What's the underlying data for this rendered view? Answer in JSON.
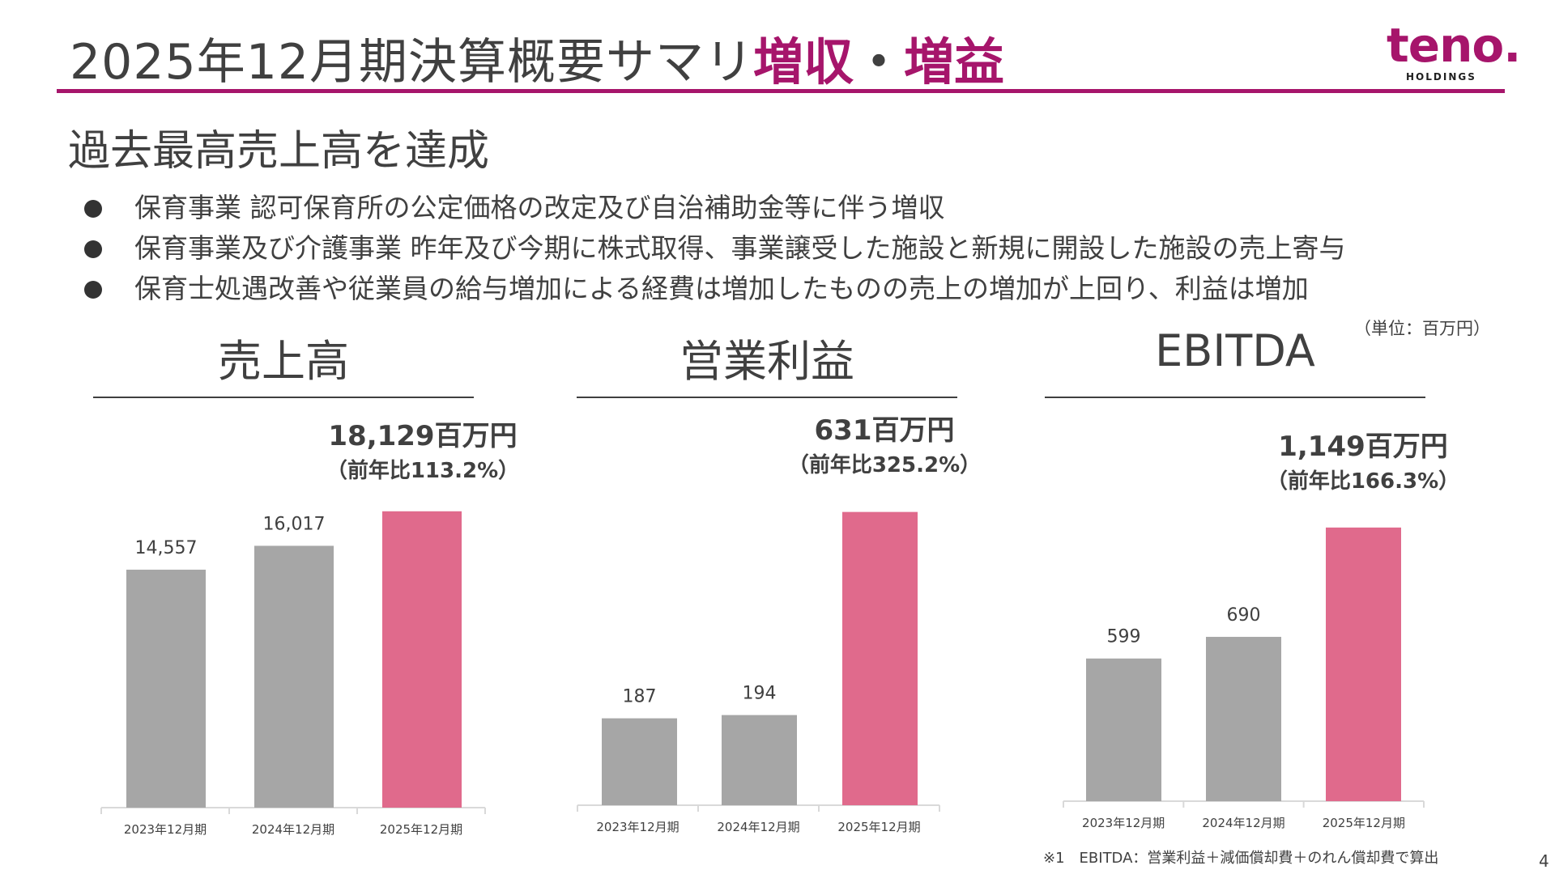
{
  "header": {
    "title": "2025年12月期決算概要サマリ",
    "highlight_part1": "増収",
    "highlight_sep": "・",
    "highlight_part2": "増益",
    "logo_text": "teno.",
    "logo_sub": "HOLDINGS"
  },
  "headline": "過去最高売上高を達成",
  "bullets": [
    "保育事業 認可保育所の公定価格の改定及び自治補助金等に伴う増収",
    "保育事業及び介護事業 昨年及び今期に株式取得、事業譲受した施設と新規に開設した施設の売上寄与",
    "保育士処遇改善や従業員の給与増加による経費は増加したものの売上の増加が上回り、利益は増加"
  ],
  "unit_note": "（単位：百万円）",
  "footnote": "※1　EBITDA：営業利益＋減価償却費＋のれん償却費で算出",
  "page_number": "4",
  "colors": {
    "accent": "#a6156b",
    "bar_prior": "#a6a6a6",
    "bar_current": "#e06a8c",
    "text": "#404040"
  },
  "chart_data": [
    {
      "type": "bar",
      "title": "売上高",
      "categories": [
        "2023年12月期",
        "2024年12月期",
        "2025年12月期"
      ],
      "values": [
        14557,
        16017,
        18129
      ],
      "value_labels": [
        "14,557",
        "16,017",
        ""
      ],
      "highlight_value": "18,129百万円",
      "highlight_ratio": "（前年比113.2%）",
      "ylim": [
        0,
        20000
      ]
    },
    {
      "type": "bar",
      "title": "営業利益",
      "categories": [
        "2023年12月期",
        "2024年12月期",
        "2025年12月期"
      ],
      "values": [
        187,
        194,
        631
      ],
      "value_labels": [
        "187",
        "194",
        ""
      ],
      "highlight_value": "631百万円",
      "highlight_ratio": "（前年比325.2%）",
      "ylim": [
        0,
        700
      ]
    },
    {
      "type": "bar",
      "title": "EBITDA",
      "categories": [
        "2023年12月期",
        "2024年12月期",
        "2025年12月期"
      ],
      "values": [
        599,
        690,
        1149
      ],
      "value_labels": [
        "599",
        "690",
        ""
      ],
      "highlight_value": "1,149百万円",
      "highlight_ratio": "（前年比166.3%）",
      "ylim": [
        0,
        1400
      ]
    }
  ]
}
